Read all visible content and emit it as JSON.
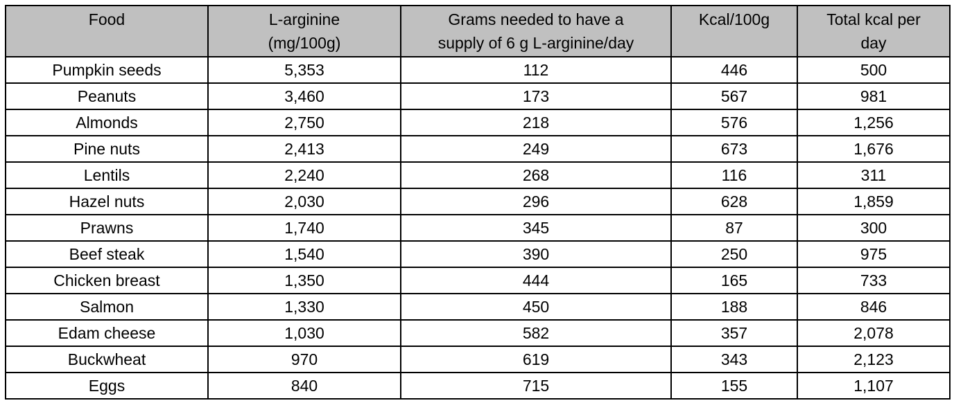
{
  "table": {
    "header": [
      [
        "Food"
      ],
      [
        "L-arginine",
        "(mg/100g)"
      ],
      [
        "Grams needed to have a",
        "supply of 6 g L-arginine/day"
      ],
      [
        "Kcal/100g"
      ],
      [
        "Total kcal per",
        "day"
      ]
    ],
    "rows": [
      [
        "Pumpkin seeds",
        "5,353",
        "112",
        "446",
        "500"
      ],
      [
        "Peanuts",
        "3,460",
        "173",
        "567",
        "981"
      ],
      [
        "Almonds",
        "2,750",
        "218",
        "576",
        "1,256"
      ],
      [
        "Pine nuts",
        "2,413",
        "249",
        "673",
        "1,676"
      ],
      [
        "Lentils",
        "2,240",
        "268",
        "116",
        "311"
      ],
      [
        "Hazel nuts",
        "2,030",
        "296",
        "628",
        "1,859"
      ],
      [
        "Prawns",
        "1,740",
        "345",
        "87",
        "300"
      ],
      [
        "Beef steak",
        "1,540",
        "390",
        "250",
        "975"
      ],
      [
        "Chicken breast",
        "1,350",
        "444",
        "165",
        "733"
      ],
      [
        "Salmon",
        "1,330",
        "450",
        "188",
        "846"
      ],
      [
        "Edam cheese",
        "1,030",
        "582",
        "357",
        "2,078"
      ],
      [
        "Buckwheat",
        "970",
        "619",
        "343",
        "2,123"
      ],
      [
        "Eggs",
        "840",
        "715",
        "155",
        "1,107"
      ]
    ]
  }
}
